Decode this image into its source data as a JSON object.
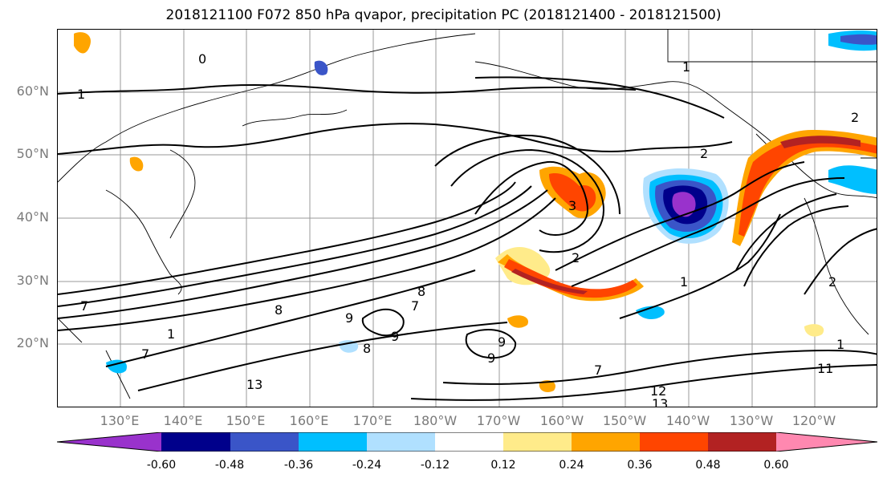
{
  "title": "2018121100 F072 850 hPa qvapor, precipitation PC (2018121400 - 2018121500)",
  "lat_labels": [
    "60°N",
    "50°N",
    "40°N",
    "30°N",
    "20°N"
  ],
  "lon_labels": [
    "130°E",
    "140°E",
    "150°E",
    "160°E",
    "170°E",
    "180°W",
    "170°W",
    "160°W",
    "150°W",
    "140°W",
    "130°W",
    "120°W"
  ],
  "contour_labels": [
    "1",
    "0",
    "1",
    "2",
    "2",
    "3",
    "2",
    "1",
    "7",
    "1",
    "7",
    "8",
    "9",
    "8",
    "9",
    "7",
    "8",
    "9",
    "9",
    "7",
    "13",
    "12",
    "13",
    "11",
    "1",
    "2"
  ],
  "colorbar": {
    "tick_labels": [
      "-0.60",
      "-0.48",
      "-0.36",
      "-0.24",
      "-0.12",
      "0.12",
      "0.24",
      "0.36",
      "0.48",
      "0.60"
    ],
    "colors": [
      "#9932CC",
      "#00008B",
      "#3A55C8",
      "#00BFFF",
      "#B0E0FF",
      "#FFFFFF",
      "#FFEB8A",
      "#FFA500",
      "#FF4500",
      "#B22222",
      "#FF88B0"
    ]
  }
}
